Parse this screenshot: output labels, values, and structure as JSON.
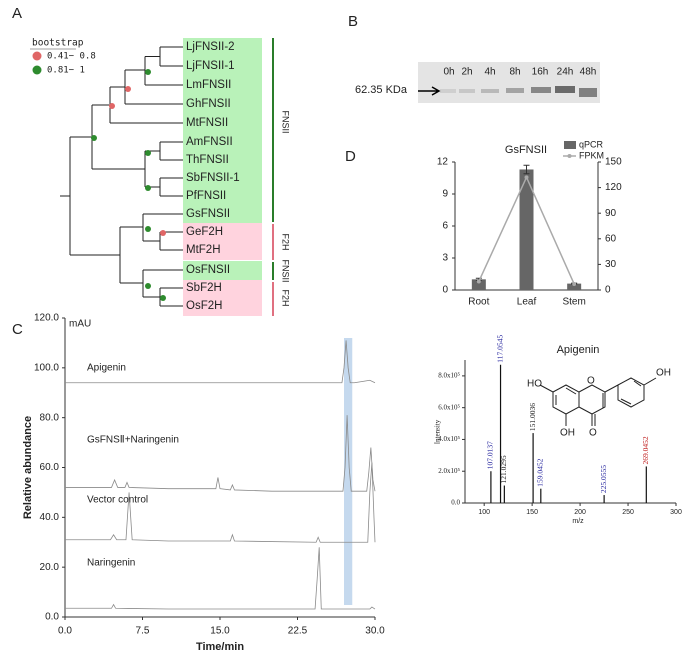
{
  "panel_labels": [
    "A",
    "B",
    "C",
    "D"
  ],
  "tree": {
    "legend_title": "bootstrap",
    "legend": [
      "0.41− 0.8",
      "0.81− 1"
    ],
    "leaves": [
      "LjFNSII-2",
      "LjFNSII-1",
      "LmFNSII",
      "GhFNSII",
      "MtFNSII",
      "AmFNSII",
      "ThFNSII",
      "SbFNSII-1",
      "PfFNSII",
      "GsFNSII",
      "GeF2H",
      "MtF2H",
      "OsFNSII",
      "SbF2H",
      "OsF2H"
    ],
    "highlight_leaf": 9,
    "groups": [
      "FNSII",
      "F2H",
      "FNSII",
      "F2H"
    ]
  },
  "gel": {
    "lanes": [
      "0h",
      "2h",
      "4h",
      "8h",
      "16h",
      "24h",
      "48h"
    ],
    "marker": "62.35 KDa"
  },
  "structure": {
    "labels": [
      "HO",
      "O",
      "OH",
      "OH",
      "O"
    ]
  },
  "chart_data": [
    {
      "type": "bar",
      "title": "GsFNSII",
      "categories": [
        "Root",
        "Leaf",
        "Stem"
      ],
      "series": [
        {
          "name": "qPCR",
          "color": "#666666",
          "values": [
            1.0,
            11.3,
            0.6
          ],
          "errors": [
            0.1,
            0.4,
            0.05
          ]
        },
        {
          "name": "FPKM",
          "color": "#aaaaaa",
          "type": "line",
          "axis": "y2",
          "values": [
            10,
            132,
            7
          ]
        }
      ],
      "ylim": [
        0,
        12
      ],
      "yticks": [
        0,
        3,
        6,
        9,
        12
      ],
      "y2lim": [
        0,
        150
      ],
      "y2ticks": [
        0,
        30,
        60,
        90,
        120,
        150
      ]
    },
    {
      "type": "line",
      "x_label": "Time/min",
      "y_label": "Relative abundance",
      "y_unit": "mAU",
      "highlight": [
        27.0,
        27.8
      ],
      "xlim": [
        0,
        30
      ],
      "xticks": [
        {
          "value": 0,
          "label": "0.0"
        },
        7.5,
        {
          "value": 15,
          "label": "15.0"
        },
        22.5,
        {
          "value": 30,
          "label": "30.0"
        }
      ],
      "ylim": [
        0,
        120
      ],
      "yticks": [
        {
          "value": 0,
          "label": "0.0"
        },
        {
          "value": 20,
          "label": "20.0"
        },
        {
          "value": 40,
          "label": "40.0"
        },
        {
          "value": 60,
          "label": "60.0"
        },
        {
          "value": 80,
          "label": "80.0"
        },
        {
          "value": 100,
          "label": "100.0"
        },
        {
          "value": 120,
          "label": "120.0"
        }
      ],
      "series": [
        {
          "name": "Apigenin",
          "color": "#8a8a8a",
          "x": [
            0,
            5,
            10,
            15,
            20,
            25,
            26.8,
            27.0,
            27.2,
            27.4,
            27.6,
            28,
            29.5,
            30
          ],
          "values": [
            94,
            94,
            94,
            94,
            94,
            94,
            94,
            100,
            111,
            100,
            94,
            94,
            95,
            94
          ]
        },
        {
          "name": "GsFNSⅡ+Naringenin",
          "color": "#8a8a8a",
          "x": [
            0,
            4.5,
            4.8,
            5.1,
            5.8,
            6.0,
            6.2,
            10,
            14.6,
            14.8,
            15.0,
            16,
            16.2,
            16.4,
            20,
            26.9,
            27.1,
            27.3,
            27.5,
            27.7,
            29.2,
            29.4,
            29.6,
            29.8,
            30
          ],
          "values": [
            52,
            52,
            55,
            52,
            52,
            54,
            52,
            51.5,
            51.5,
            56,
            51.5,
            51,
            53,
            51,
            50.5,
            50.5,
            60,
            81,
            60,
            50.5,
            50.5,
            58,
            68,
            55,
            50.5
          ]
        },
        {
          "name": "Vector control",
          "color": "#8a8a8a",
          "x": [
            0,
            4.4,
            4.7,
            5.0,
            5.9,
            6.2,
            6.5,
            10,
            16,
            16.2,
            16.4,
            24.3,
            24.5,
            24.7,
            29.3,
            29.5,
            29.7,
            29.9,
            30
          ],
          "values": [
            31,
            31,
            33,
            31,
            31,
            50,
            31,
            30.5,
            30.5,
            33,
            30.5,
            30,
            32,
            30,
            30,
            50,
            62,
            40,
            30
          ]
        },
        {
          "name": "Naringenin",
          "color": "#8a8a8a",
          "x": [
            0,
            4.5,
            4.7,
            4.9,
            10,
            24.2,
            24.4,
            24.6,
            24.8,
            29.5,
            29.7,
            30
          ],
          "values": [
            3.5,
            3.5,
            5,
            3.5,
            3.2,
            3.2,
            15,
            28,
            3.2,
            3.2,
            4,
            3.2
          ]
        }
      ]
    },
    {
      "type": "stem",
      "title": "Apigenin",
      "x_label": "m/z",
      "y_label": "Intensity",
      "x": [
        107.0137,
        117.0545,
        121.0295,
        151.0036,
        159.0452,
        225.0555,
        269.0452
      ],
      "values": [
        200000,
        870000,
        110000,
        440000,
        90000,
        50000,
        230000
      ],
      "colors": [
        "#2a2aa0",
        "#2a2aa0",
        "#222222",
        "#222222",
        "#2a2aa0",
        "#2a2aa0",
        "#c02020"
      ],
      "xlim": [
        80,
        300
      ],
      "xticks": [
        100,
        150,
        200,
        250,
        300
      ],
      "ylim": [
        0,
        900000
      ],
      "yticks": [
        {
          "value": 0,
          "label": "0.0"
        },
        {
          "value": 200000,
          "label": "2.0x10⁵"
        },
        {
          "value": 400000,
          "label": "4.0x10⁵"
        },
        {
          "value": 600000,
          "label": "6.0x10⁵"
        },
        {
          "value": 800000,
          "label": "8.0x10⁵"
        }
      ]
    }
  ]
}
